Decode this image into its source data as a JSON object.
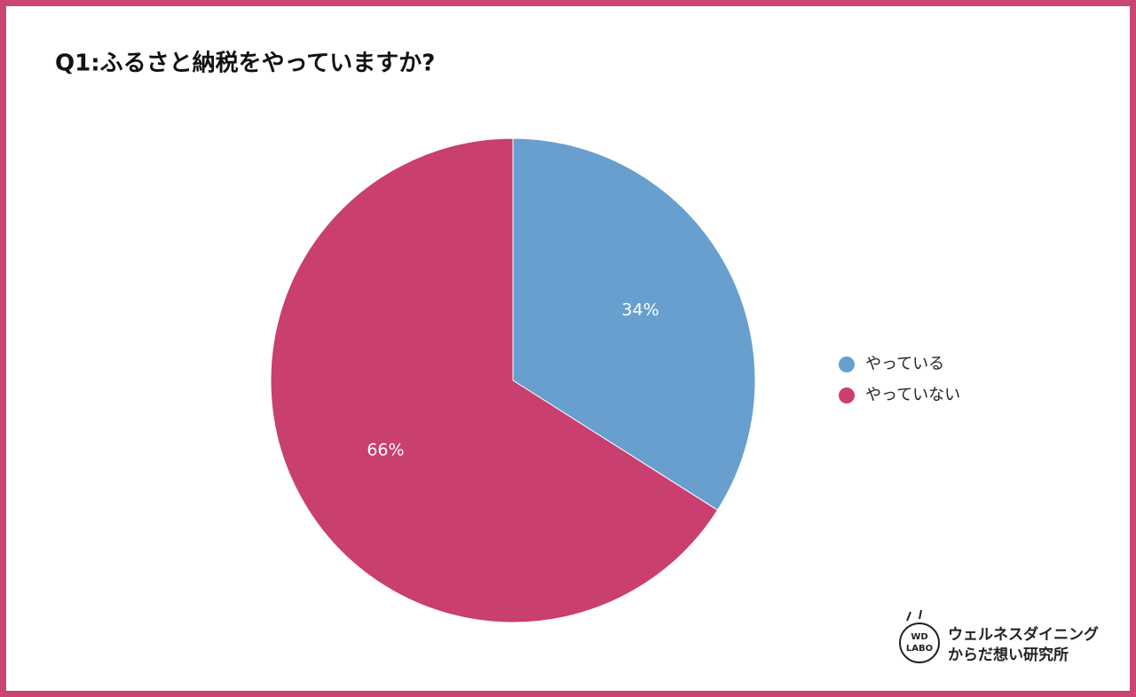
{
  "chart_data": {
    "type": "pie",
    "title": "Q1:ふるさと納税をやっていますか?",
    "categories": [
      "やっている",
      "やっていない"
    ],
    "values": [
      34,
      66
    ],
    "value_labels": [
      "34%",
      "66%"
    ],
    "colors": [
      "#689fcf",
      "#c93f6f"
    ],
    "legend": "right"
  },
  "logo": {
    "mark_top": "WD",
    "mark_bottom": "LABO",
    "line1": "ウェルネスダイニング",
    "line2": "からだ想い研究所"
  }
}
